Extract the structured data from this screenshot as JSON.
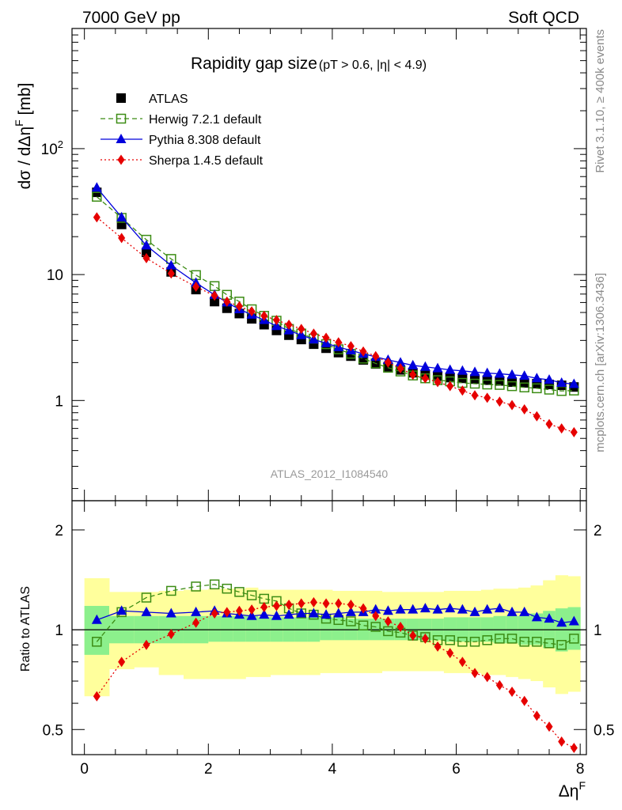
{
  "header": {
    "left": "7000 GeV pp",
    "right": "Soft QCD"
  },
  "title": {
    "main": "Rapidity gap size",
    "sub": "(pT > 0.6, |η| < 4.9)"
  },
  "side_text": {
    "rivet": "Rivet 3.1.10, ≥ 400k events",
    "mcplots": "mcplots.cern.ch [arXiv:1306.3436]"
  },
  "watermark": "ATLAS_2012_I1084540",
  "ylabel_main": "dσ / dΔη",
  "ylabel_main_sup": "F",
  "ylabel_main_unit": " [mb]",
  "ylabel_ratio": "Ratio to ATLAS",
  "xlabel": "Δη",
  "xlabel_sup": "F",
  "colors": {
    "atlas": "#000000",
    "herwig": "#3c8c14",
    "pythia": "#0000dc",
    "sherpa": "#e60000",
    "band_inner": "#8cf08c",
    "band_outer": "#ffff9c"
  },
  "chart_data": [
    {
      "type": "scatter",
      "panel": "main",
      "yscale": "log",
      "xlim": [
        -0.2,
        8.1
      ],
      "ylim": [
        0.16,
        900
      ],
      "yticks_major": [
        1,
        10,
        100
      ],
      "ytick_labels": [
        "1",
        "10",
        "10^2"
      ],
      "xticks_major": [
        0,
        2,
        4,
        6,
        8
      ],
      "xtick_labels": [
        "0",
        "2",
        "4",
        "6",
        "8"
      ],
      "legend_position": "top-left",
      "series": [
        {
          "name": "ATLAS",
          "marker": "filled-square",
          "x": [
            0.2,
            0.6,
            1.0,
            1.4,
            1.8,
            2.1,
            2.3,
            2.5,
            2.7,
            2.9,
            3.1,
            3.3,
            3.5,
            3.7,
            3.9,
            4.1,
            4.3,
            4.5,
            4.7,
            4.9,
            5.1,
            5.3,
            5.5,
            5.7,
            5.9,
            6.1,
            6.3,
            6.5,
            6.7,
            6.9,
            7.1,
            7.3,
            7.5,
            7.7,
            7.9
          ],
          "values": [
            45,
            25,
            15,
            10.5,
            7.6,
            6.1,
            5.4,
            4.9,
            4.45,
            4.0,
            3.6,
            3.3,
            3.05,
            2.8,
            2.6,
            2.4,
            2.25,
            2.1,
            1.95,
            1.85,
            1.75,
            1.66,
            1.6,
            1.56,
            1.52,
            1.5,
            1.48,
            1.45,
            1.43,
            1.4,
            1.38,
            1.36,
            1.34,
            1.32,
            1.28
          ]
        },
        {
          "name": "Herwig 7.2.1 default",
          "marker": "open-square",
          "line": "dashed",
          "x": [
            0.2,
            0.6,
            1.0,
            1.4,
            1.8,
            2.1,
            2.3,
            2.5,
            2.7,
            2.9,
            3.1,
            3.3,
            3.5,
            3.7,
            3.9,
            4.1,
            4.3,
            4.5,
            4.7,
            4.9,
            5.1,
            5.3,
            5.5,
            5.7,
            5.9,
            6.1,
            6.3,
            6.5,
            6.7,
            6.9,
            7.1,
            7.3,
            7.5,
            7.7,
            7.9
          ],
          "values": [
            41.5,
            28.2,
            18.9,
            13.3,
            9.9,
            8.1,
            6.9,
            6.1,
            5.3,
            4.7,
            4.3,
            3.7,
            3.4,
            3.1,
            2.8,
            2.55,
            2.35,
            2.15,
            1.97,
            1.82,
            1.7,
            1.58,
            1.5,
            1.45,
            1.42,
            1.38,
            1.36,
            1.34,
            1.33,
            1.3,
            1.27,
            1.25,
            1.22,
            1.19,
            1.2
          ]
        },
        {
          "name": "Pythia 8.308 default",
          "marker": "filled-triangle",
          "line": "solid",
          "x": [
            0.2,
            0.6,
            1.0,
            1.4,
            1.8,
            2.1,
            2.3,
            2.5,
            2.7,
            2.9,
            3.1,
            3.3,
            3.5,
            3.7,
            3.9,
            4.1,
            4.3,
            4.5,
            4.7,
            4.9,
            5.1,
            5.3,
            5.5,
            5.7,
            5.9,
            6.1,
            6.3,
            6.5,
            6.7,
            6.9,
            7.1,
            7.3,
            7.5,
            7.7,
            7.9
          ],
          "values": [
            49,
            28.5,
            17,
            11.8,
            8.6,
            6.9,
            6.0,
            5.3,
            4.8,
            4.35,
            3.9,
            3.6,
            3.3,
            3.05,
            2.85,
            2.65,
            2.5,
            2.35,
            2.22,
            2.1,
            2.0,
            1.9,
            1.85,
            1.8,
            1.75,
            1.72,
            1.68,
            1.65,
            1.63,
            1.6,
            1.57,
            1.5,
            1.46,
            1.38,
            1.35
          ]
        },
        {
          "name": "Sherpa 1.4.5 default",
          "marker": "filled-diamond",
          "line": "dotted",
          "x": [
            0.2,
            0.6,
            1.0,
            1.4,
            1.8,
            2.1,
            2.3,
            2.5,
            2.7,
            2.9,
            3.1,
            3.3,
            3.5,
            3.7,
            3.9,
            4.1,
            4.3,
            4.5,
            4.7,
            4.9,
            5.1,
            5.3,
            5.5,
            5.7,
            5.9,
            6.1,
            6.3,
            6.5,
            6.7,
            6.9,
            7.1,
            7.3,
            7.5,
            7.7,
            7.9
          ],
          "values": [
            28.5,
            19.5,
            13.5,
            10.2,
            8.0,
            6.8,
            6.1,
            5.6,
            5.1,
            4.7,
            4.35,
            4.0,
            3.7,
            3.4,
            3.15,
            2.9,
            2.7,
            2.45,
            2.25,
            2.0,
            1.8,
            1.6,
            1.5,
            1.4,
            1.3,
            1.2,
            1.1,
            1.05,
            0.98,
            0.92,
            0.85,
            0.75,
            0.65,
            0.6,
            0.56
          ]
        }
      ]
    },
    {
      "type": "scatter",
      "panel": "ratio",
      "yscale": "log",
      "xlim": [
        -0.2,
        8.1
      ],
      "ylim": [
        0.42,
        2.45
      ],
      "yticks_major": [
        0.5,
        1,
        2
      ],
      "ytick_labels": [
        "0.5",
        "1",
        "2"
      ],
      "xticks_major": [
        0,
        2,
        4,
        6,
        8
      ],
      "xtick_labels": [
        "0",
        "2",
        "4",
        "6",
        "8"
      ],
      "reference_line": 1,
      "bands": {
        "x_edges": [
          0.0,
          0.4,
          0.8,
          1.2,
          1.6,
          2.0,
          2.2,
          2.4,
          2.6,
          2.8,
          3.0,
          3.2,
          3.4,
          3.6,
          3.8,
          4.0,
          4.2,
          4.4,
          4.6,
          4.8,
          5.0,
          5.2,
          5.4,
          5.6,
          5.8,
          6.0,
          6.2,
          6.4,
          6.6,
          6.8,
          7.0,
          7.2,
          7.4,
          7.6,
          7.8,
          8.0
        ],
        "inner_low": [
          0.84,
          0.91,
          0.91,
          0.91,
          0.91,
          0.92,
          0.92,
          0.92,
          0.92,
          0.92,
          0.92,
          0.92,
          0.92,
          0.92,
          0.93,
          0.93,
          0.93,
          0.93,
          0.93,
          0.93,
          0.93,
          0.93,
          0.93,
          0.93,
          0.92,
          0.92,
          0.92,
          0.92,
          0.91,
          0.91,
          0.9,
          0.9,
          0.88,
          0.86,
          0.87
        ],
        "inner_high": [
          1.18,
          1.1,
          1.1,
          1.1,
          1.1,
          1.1,
          1.1,
          1.1,
          1.1,
          1.09,
          1.09,
          1.09,
          1.09,
          1.09,
          1.09,
          1.09,
          1.08,
          1.08,
          1.08,
          1.08,
          1.08,
          1.08,
          1.08,
          1.08,
          1.09,
          1.09,
          1.09,
          1.09,
          1.1,
          1.1,
          1.1,
          1.12,
          1.14,
          1.16,
          1.17
        ],
        "outer_low": [
          0.63,
          0.76,
          0.77,
          0.73,
          0.71,
          0.71,
          0.71,
          0.71,
          0.72,
          0.72,
          0.73,
          0.73,
          0.73,
          0.73,
          0.74,
          0.74,
          0.74,
          0.74,
          0.74,
          0.75,
          0.75,
          0.75,
          0.75,
          0.75,
          0.74,
          0.74,
          0.74,
          0.73,
          0.73,
          0.72,
          0.71,
          0.7,
          0.67,
          0.64,
          0.65
        ],
        "outer_high": [
          1.43,
          1.3,
          1.3,
          1.31,
          1.32,
          1.33,
          1.33,
          1.33,
          1.34,
          1.32,
          1.32,
          1.32,
          1.32,
          1.32,
          1.32,
          1.31,
          1.31,
          1.31,
          1.31,
          1.3,
          1.3,
          1.3,
          1.3,
          1.3,
          1.31,
          1.31,
          1.31,
          1.32,
          1.33,
          1.33,
          1.34,
          1.36,
          1.41,
          1.46,
          1.45
        ]
      },
      "series": [
        {
          "name": "Herwig 7.2.1 default",
          "marker": "open-square",
          "line": "dashed",
          "x": [
            0.2,
            0.6,
            1.0,
            1.4,
            1.8,
            2.1,
            2.3,
            2.5,
            2.7,
            2.9,
            3.1,
            3.3,
            3.5,
            3.7,
            3.9,
            4.1,
            4.3,
            4.5,
            4.7,
            4.9,
            5.1,
            5.3,
            5.5,
            5.7,
            5.9,
            6.1,
            6.3,
            6.5,
            6.7,
            6.9,
            7.1,
            7.3,
            7.5,
            7.7,
            7.9
          ],
          "values": [
            0.92,
            1.13,
            1.25,
            1.31,
            1.35,
            1.37,
            1.33,
            1.3,
            1.27,
            1.24,
            1.22,
            1.16,
            1.12,
            1.11,
            1.08,
            1.07,
            1.06,
            1.03,
            1.02,
            0.99,
            0.98,
            0.96,
            0.95,
            0.93,
            0.93,
            0.92,
            0.92,
            0.93,
            0.94,
            0.94,
            0.92,
            0.92,
            0.91,
            0.9,
            0.94
          ]
        },
        {
          "name": "Pythia 8.308 default",
          "marker": "filled-triangle",
          "line": "solid",
          "x": [
            0.2,
            0.6,
            1.0,
            1.4,
            1.8,
            2.1,
            2.3,
            2.5,
            2.7,
            2.9,
            3.1,
            3.3,
            3.5,
            3.7,
            3.9,
            4.1,
            4.3,
            4.5,
            4.7,
            4.9,
            5.1,
            5.3,
            5.5,
            5.7,
            5.9,
            6.1,
            6.3,
            6.5,
            6.7,
            6.9,
            7.1,
            7.3,
            7.5,
            7.7,
            7.9
          ],
          "values": [
            1.07,
            1.14,
            1.13,
            1.12,
            1.13,
            1.14,
            1.12,
            1.11,
            1.1,
            1.11,
            1.1,
            1.11,
            1.12,
            1.12,
            1.11,
            1.12,
            1.13,
            1.13,
            1.15,
            1.14,
            1.15,
            1.15,
            1.16,
            1.15,
            1.16,
            1.15,
            1.13,
            1.15,
            1.16,
            1.13,
            1.13,
            1.09,
            1.08,
            1.05,
            1.06
          ]
        },
        {
          "name": "Sherpa 1.4.5 default",
          "marker": "filled-diamond",
          "line": "dotted",
          "x": [
            0.2,
            0.6,
            1.0,
            1.4,
            1.8,
            2.1,
            2.3,
            2.5,
            2.7,
            2.9,
            3.1,
            3.3,
            3.5,
            3.7,
            3.9,
            4.1,
            4.3,
            4.5,
            4.7,
            4.9,
            5.1,
            5.3,
            5.5,
            5.7,
            5.9,
            6.1,
            6.3,
            6.5,
            6.7,
            6.9,
            7.1,
            7.3,
            7.5,
            7.7,
            7.9
          ],
          "values": [
            0.63,
            0.8,
            0.9,
            0.97,
            1.05,
            1.12,
            1.13,
            1.14,
            1.15,
            1.17,
            1.18,
            1.19,
            1.2,
            1.21,
            1.2,
            1.2,
            1.19,
            1.16,
            1.1,
            1.06,
            1.02,
            0.96,
            0.94,
            0.89,
            0.85,
            0.8,
            0.74,
            0.72,
            0.68,
            0.65,
            0.61,
            0.55,
            0.51,
            0.46,
            0.44
          ]
        }
      ]
    }
  ]
}
